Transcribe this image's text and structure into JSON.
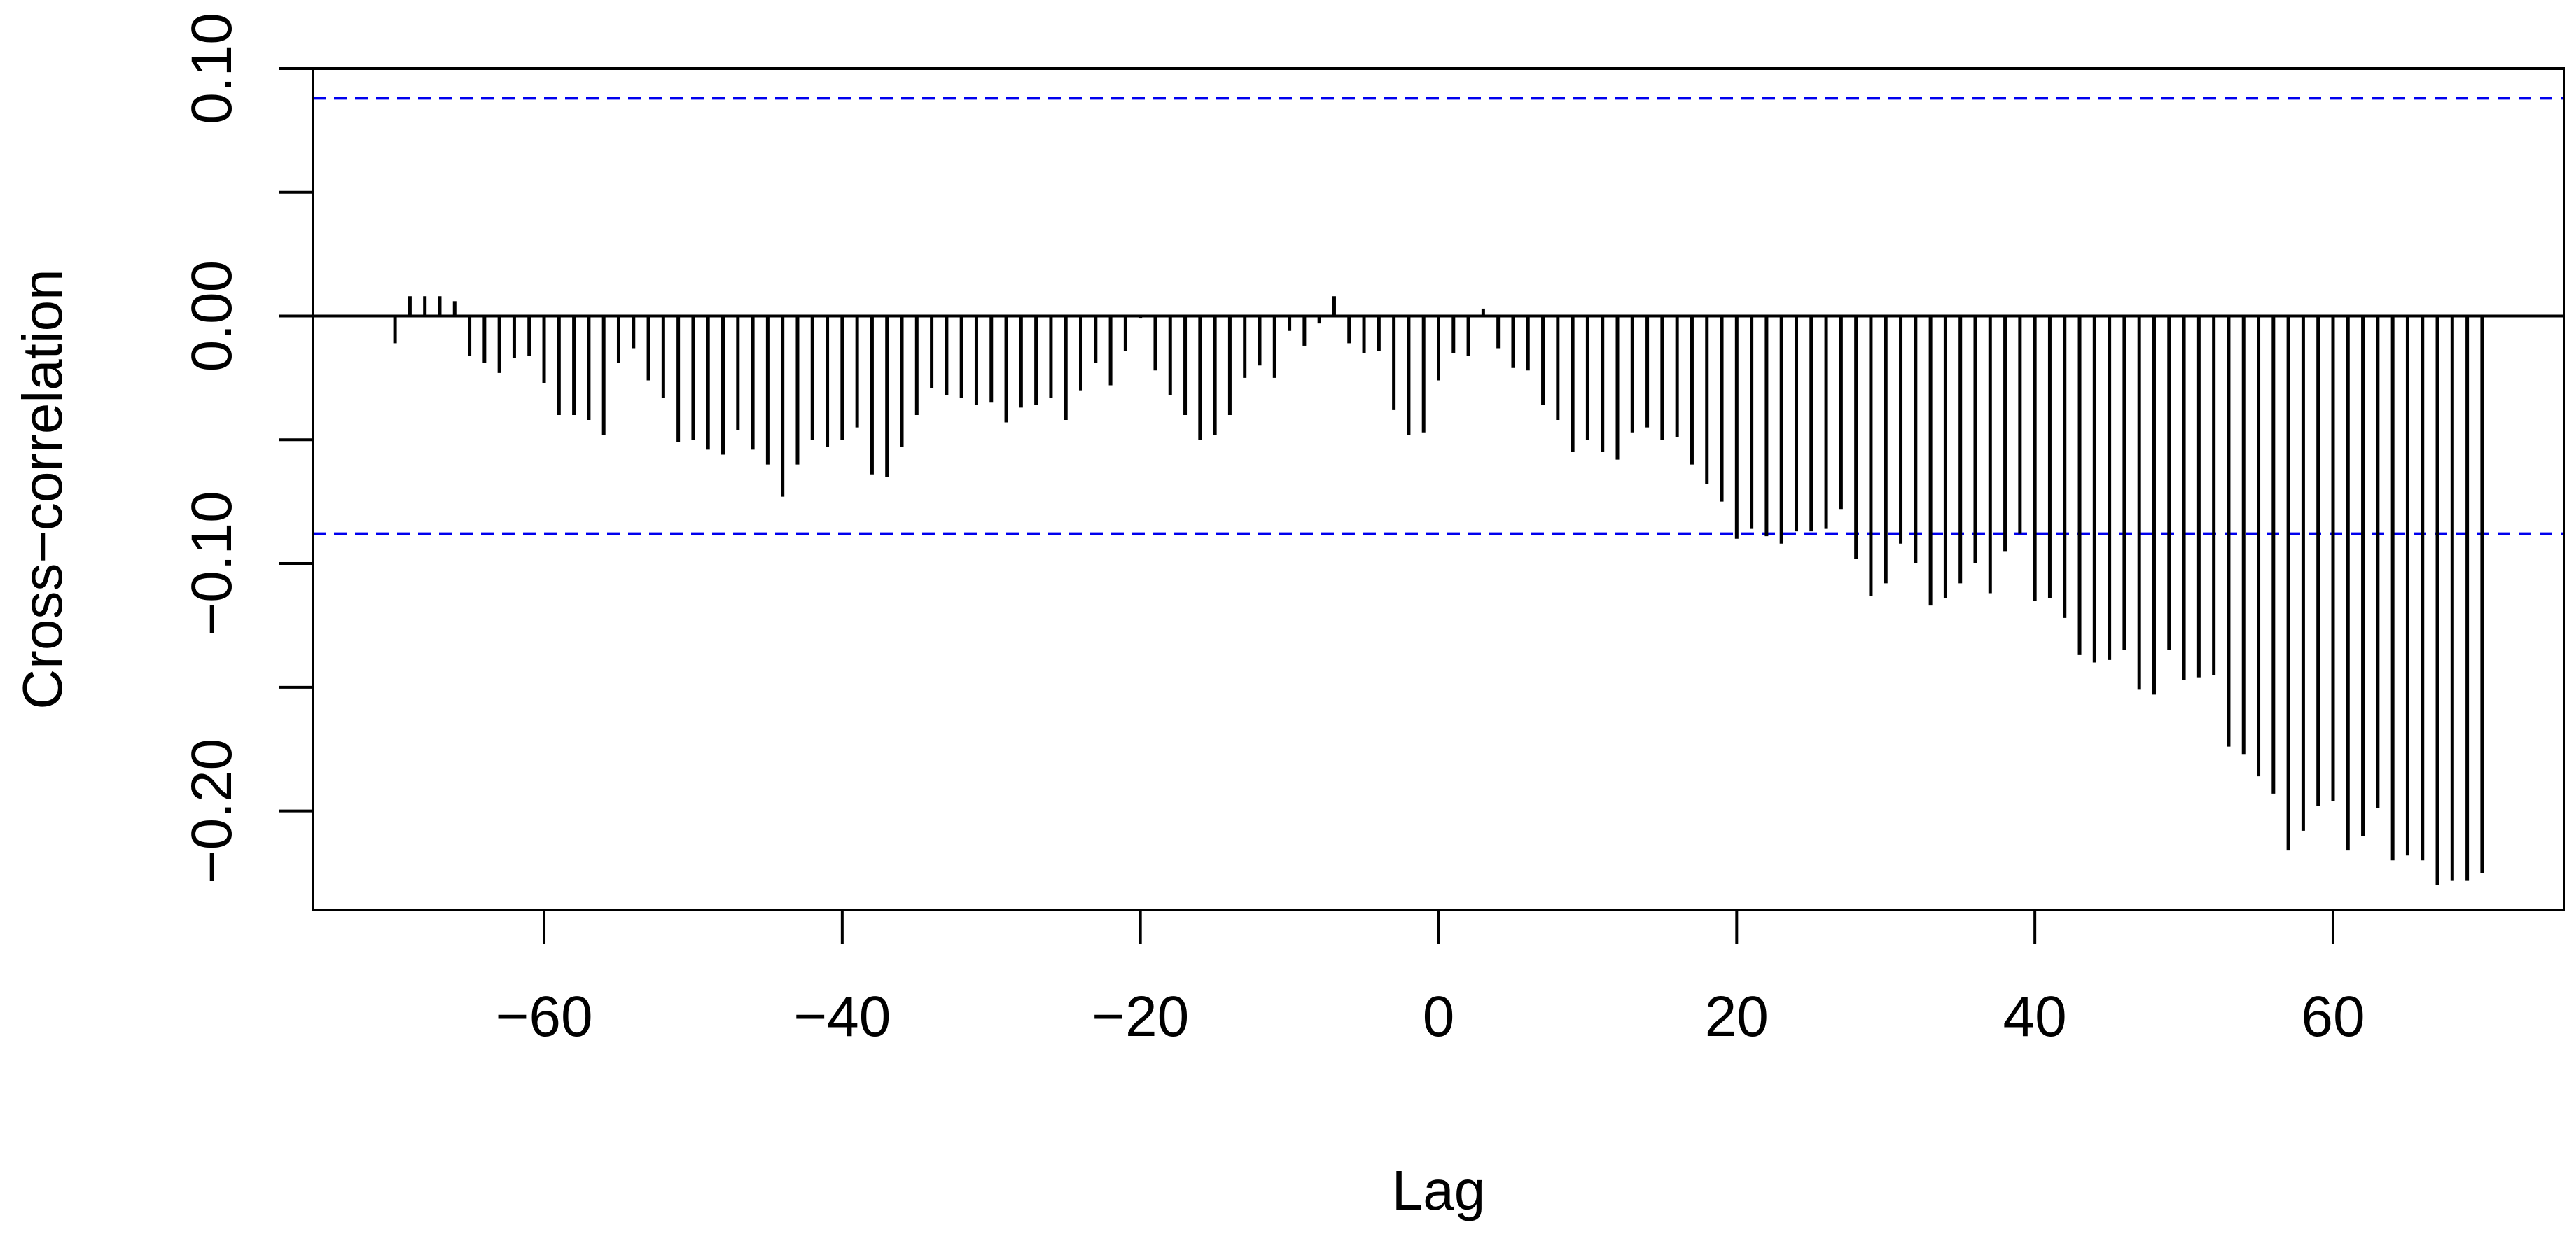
{
  "chart_data": {
    "type": "bar",
    "title": "",
    "xlabel": "Lag",
    "ylabel": "Cross−correlation",
    "xlim": [
      -75.5,
      75.5
    ],
    "ylim": [
      -0.24,
      0.1
    ],
    "x_ticks": [
      -60,
      -40,
      -20,
      0,
      20,
      40,
      60
    ],
    "x_tick_labels": [
      "−60",
      "−40",
      "−20",
      "0",
      "20",
      "40",
      "60"
    ],
    "y_ticks": [
      -0.2,
      -0.15,
      -0.1,
      -0.05,
      0.0,
      0.05,
      0.1
    ],
    "y_tick_labels": [
      "−0.20",
      "",
      "−0.10",
      "",
      "0.00",
      "",
      "0.10"
    ],
    "confidence_bounds": [
      0.088,
      -0.088
    ],
    "grid": false,
    "legend": "none",
    "colors": {
      "bars": "#000000",
      "bounds": "#0000ee",
      "axes": "#000000"
    },
    "series": [
      {
        "x": [
          -70,
          -69,
          -68,
          -67,
          -66,
          -65,
          -64,
          -63,
          -62,
          -61,
          -60,
          -59,
          -58,
          -57,
          -56,
          -55,
          -54,
          -53,
          -52,
          -51,
          -50,
          -49,
          -48,
          -47,
          -46,
          -45,
          -44,
          -43,
          -42,
          -41,
          -40,
          -39,
          -38,
          -37,
          -36,
          -35,
          -34,
          -33,
          -32,
          -31,
          -30,
          -29,
          -28,
          -27,
          -26,
          -25,
          -24,
          -23,
          -22,
          -21,
          -20,
          -19,
          -18,
          -17,
          -16,
          -15,
          -14,
          -13,
          -12,
          -11,
          -10,
          -9,
          -8,
          -7,
          -6,
          -5,
          -4,
          -3,
          -2,
          -1,
          0,
          1,
          2,
          3,
          4,
          5,
          6,
          7,
          8,
          9,
          10,
          11,
          12,
          13,
          14,
          15,
          16,
          17,
          18,
          19,
          20,
          21,
          22,
          23,
          24,
          25,
          26,
          27,
          28,
          29,
          30,
          31,
          32,
          33,
          34,
          35,
          36,
          37,
          38,
          39,
          40,
          41,
          42,
          43,
          44,
          45,
          46,
          47,
          48,
          49,
          50,
          51,
          52,
          53,
          54,
          55,
          56,
          57,
          58,
          59,
          60,
          61,
          62,
          63,
          64,
          65,
          66,
          67,
          68,
          69,
          70
        ],
        "values": [
          -0.011,
          0.008,
          0.008,
          0.008,
          0.006,
          -0.016,
          -0.019,
          -0.023,
          -0.017,
          -0.016,
          -0.027,
          -0.04,
          -0.04,
          -0.042,
          -0.048,
          -0.019,
          -0.013,
          -0.026,
          -0.033,
          -0.051,
          -0.05,
          -0.054,
          -0.056,
          -0.046,
          -0.054,
          -0.06,
          -0.073,
          -0.06,
          -0.05,
          -0.053,
          -0.05,
          -0.045,
          -0.064,
          -0.065,
          -0.053,
          -0.04,
          -0.029,
          -0.032,
          -0.033,
          -0.036,
          -0.035,
          -0.043,
          -0.037,
          -0.036,
          -0.033,
          -0.042,
          -0.03,
          -0.019,
          -0.028,
          -0.014,
          -0.001,
          -0.022,
          -0.032,
          -0.04,
          -0.05,
          -0.048,
          -0.04,
          -0.025,
          -0.02,
          -0.025,
          -0.006,
          -0.012,
          -0.003,
          0.008,
          -0.011,
          -0.015,
          -0.014,
          -0.038,
          -0.048,
          -0.047,
          -0.026,
          -0.015,
          -0.016,
          0.003,
          -0.013,
          -0.021,
          -0.022,
          -0.036,
          -0.042,
          -0.055,
          -0.05,
          -0.055,
          -0.058,
          -0.047,
          -0.045,
          -0.05,
          -0.049,
          -0.06,
          -0.068,
          -0.075,
          -0.09,
          -0.086,
          -0.089,
          -0.092,
          -0.087,
          -0.087,
          -0.086,
          -0.078,
          -0.098,
          -0.113,
          -0.108,
          -0.092,
          -0.1,
          -0.117,
          -0.114,
          -0.108,
          -0.1,
          -0.112,
          -0.095,
          -0.088,
          -0.115,
          -0.114,
          -0.122,
          -0.137,
          -0.14,
          -0.139,
          -0.135,
          -0.151,
          -0.153,
          -0.135,
          -0.147,
          -0.146,
          -0.145,
          -0.174,
          -0.177,
          -0.186,
          -0.193,
          -0.216,
          -0.208,
          -0.198,
          -0.196,
          -0.216,
          -0.21,
          -0.199,
          -0.22,
          -0.218,
          -0.22,
          -0.23,
          -0.228,
          -0.228,
          -0.225
        ]
      }
    ]
  }
}
